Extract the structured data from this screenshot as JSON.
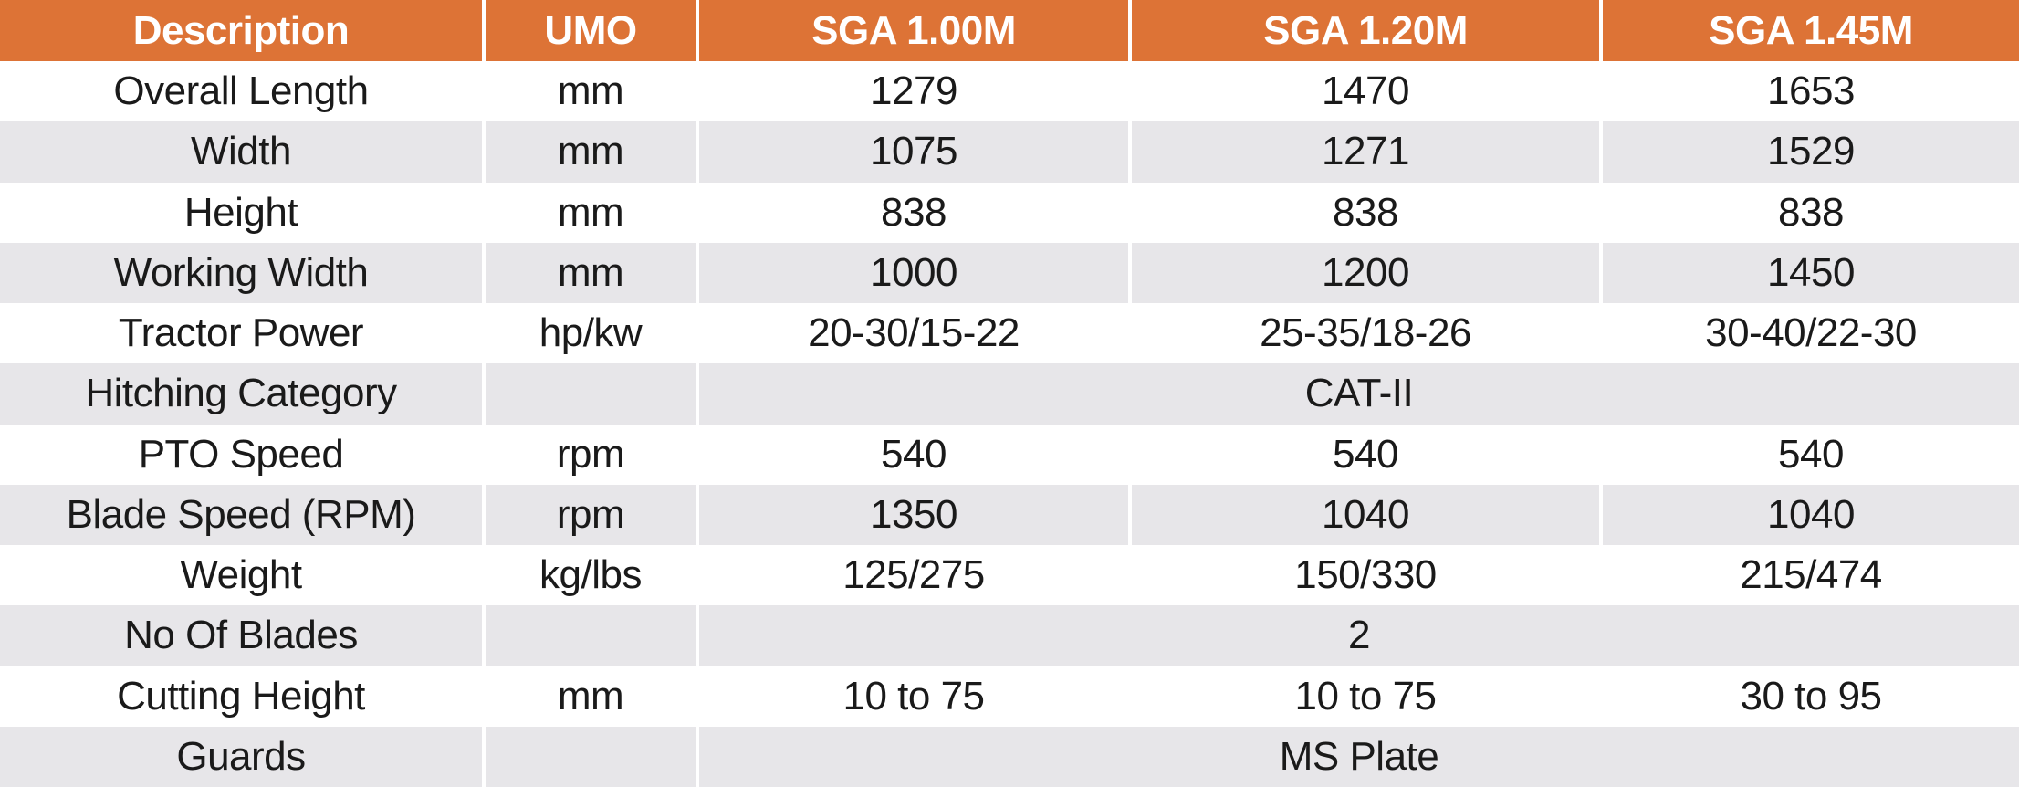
{
  "chart_data": {
    "type": "table",
    "columns": [
      "Description",
      "UMO",
      "SGA 1.00M",
      "SGA 1.20M",
      "SGA 1.45M"
    ],
    "rows": [
      {
        "description": "Overall Length",
        "umo": "mm",
        "values": [
          "1279",
          "1470",
          "1653"
        ]
      },
      {
        "description": "Width",
        "umo": "mm",
        "values": [
          "1075",
          "1271",
          "1529"
        ]
      },
      {
        "description": "Height",
        "umo": "mm",
        "values": [
          "838",
          "838",
          "838"
        ]
      },
      {
        "description": "Working Width",
        "umo": "mm",
        "values": [
          "1000",
          "1200",
          "1450"
        ]
      },
      {
        "description": "Tractor Power",
        "umo": "hp/kw",
        "values": [
          "20-30/15-22",
          "25-35/18-26",
          "30-40/22-30"
        ]
      },
      {
        "description": "Hitching Category",
        "umo": "",
        "merged_value": "CAT-II"
      },
      {
        "description": "PTO Speed",
        "umo": "rpm",
        "values": [
          "540",
          "540",
          "540"
        ]
      },
      {
        "description": "Blade Speed (RPM)",
        "umo": "rpm",
        "values": [
          "1350",
          "1040",
          "1040"
        ]
      },
      {
        "description": "Weight",
        "umo": "kg/lbs",
        "values": [
          "125/275",
          "150/330",
          "215/474"
        ]
      },
      {
        "description": "No Of Blades",
        "umo": "",
        "merged_value": "2"
      },
      {
        "description": "Cutting Height",
        "umo": "mm",
        "values": [
          "10 to 75",
          "10 to 75",
          "30 to 95"
        ]
      },
      {
        "description": "Guards",
        "umo": "",
        "merged_value": "MS Plate"
      }
    ],
    "layout": {
      "banded_rows": true,
      "band_order": "white-then-gray",
      "header_position": "top",
      "merged_rows_span": "SGA 1.00M through SGA 1.45M",
      "text_alignment": "center"
    }
  },
  "colors": {
    "header_bg": "#DD7336",
    "header_text": "#FFFFFF",
    "band_bg": "#E7E6E9",
    "row_bg": "#FFFFFF",
    "divider": "#FFFFFF",
    "body_text": "#1A1A1A"
  }
}
